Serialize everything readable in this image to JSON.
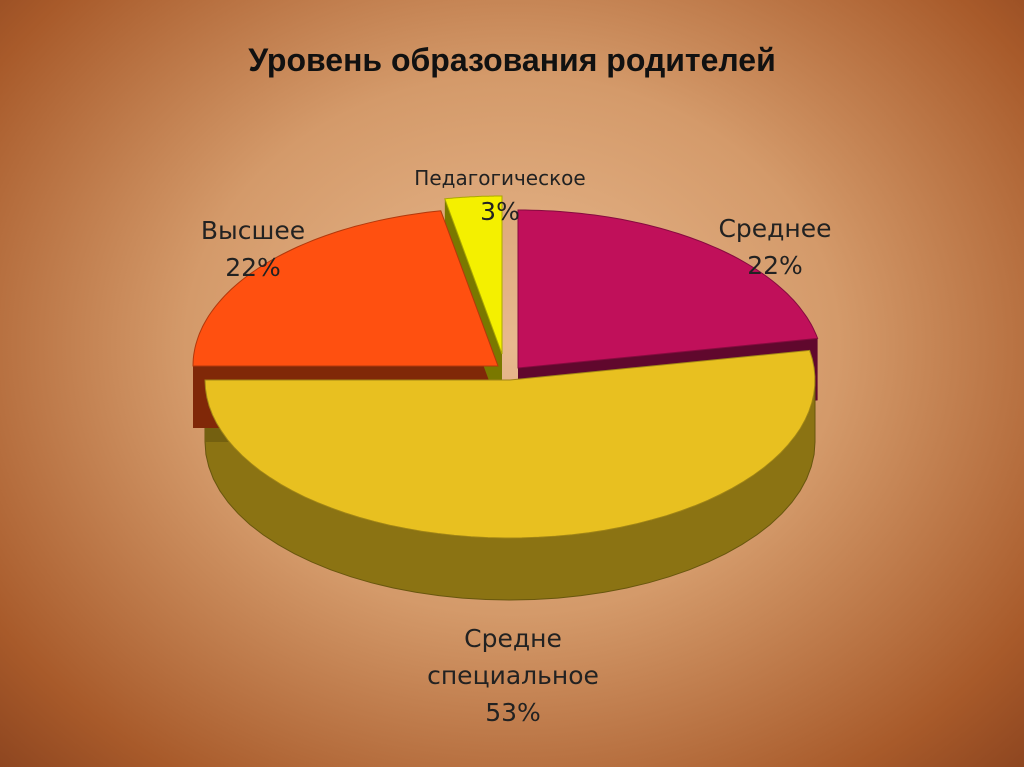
{
  "chart_data": {
    "type": "pie",
    "title": "Уровень образования родителей",
    "categories": [
      "Среднее",
      "Средне специальное",
      "Высшее",
      "Педагогическое"
    ],
    "values": [
      22,
      53,
      22,
      3
    ],
    "value_labels": [
      "22%",
      "53%",
      "22%",
      "3%"
    ],
    "colors": [
      "#c0105a",
      "#e8c020",
      "#ff5010",
      "#f4f000"
    ]
  }
}
